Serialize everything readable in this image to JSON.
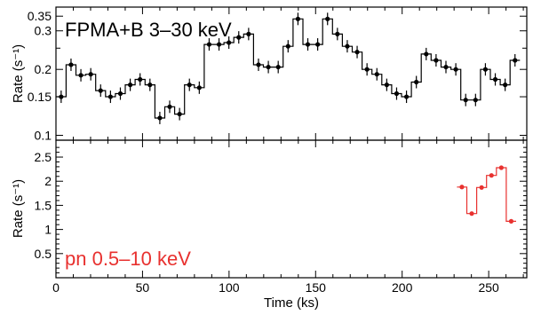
{
  "chart_data": [
    {
      "type": "line",
      "panel": "top",
      "label": "FPMA+B 3–30 keV",
      "label_color": "#000000",
      "color": "#000000",
      "ylabel": "Rate (s⁻¹)",
      "yscale": "log",
      "ylim": [
        0.095,
        0.385
      ],
      "xlim": [
        0,
        272
      ],
      "yticks": [
        0.1,
        0.15,
        0.2,
        0.3,
        0.35
      ],
      "ytick_labels": [
        "0.1",
        "0.15",
        "0.2",
        "0.3",
        "0.35"
      ],
      "series": [
        {
          "bin_width": 5.7,
          "x": [
            3,
            8.7,
            14.4,
            20.1,
            25.8,
            31.5,
            37.2,
            42.9,
            48.6,
            54.3,
            60,
            65.7,
            71.4,
            77.1,
            82.8,
            88.5,
            94.2,
            99.9,
            105.6,
            111.3,
            117,
            122.7,
            128.4,
            134.1,
            139.8,
            145.5,
            151.2,
            156.9,
            162.6,
            168.3,
            174,
            179.7,
            185.4,
            191.1,
            196.8,
            202.5,
            208.2,
            213.9,
            219.6,
            225.3,
            231,
            236.7,
            242.4,
            248.1,
            253.8,
            259.5,
            265.2
          ],
          "y": [
            0.15,
            0.21,
            0.188,
            0.19,
            0.16,
            0.15,
            0.155,
            0.17,
            0.18,
            0.17,
            0.12,
            0.135,
            0.125,
            0.17,
            0.165,
            0.26,
            0.26,
            0.265,
            0.28,
            0.29,
            0.21,
            0.205,
            0.205,
            0.255,
            0.34,
            0.26,
            0.26,
            0.34,
            0.29,
            0.255,
            0.24,
            0.2,
            0.19,
            0.17,
            0.155,
            0.15,
            0.175,
            0.235,
            0.22,
            0.205,
            0.2,
            0.145,
            0.145,
            0.2,
            0.18,
            0.17,
            0.22
          ]
        }
      ]
    },
    {
      "type": "line",
      "panel": "bottom",
      "label": "pn 0.5–10 keV",
      "label_color": "#e8312f",
      "color": "#e8312f",
      "ylabel": "Rate (s⁻¹)",
      "xlabel": "Time (ks)",
      "ylim": [
        0,
        2.85
      ],
      "xlim": [
        0,
        272
      ],
      "xticks": [
        0,
        50,
        100,
        150,
        200,
        250
      ],
      "xtick_labels": [
        "0",
        "50",
        "100",
        "150",
        "200",
        "250"
      ],
      "yticks": [
        0.5,
        1,
        1.5,
        2,
        2.5
      ],
      "ytick_labels": [
        "0.5",
        "1",
        "1.5",
        "2",
        "2.5"
      ],
      "series": [
        {
          "bin_width": 5.7,
          "x": [
            234.5,
            240.2,
            245.9,
            251.6,
            257.3,
            263
          ],
          "y": [
            1.88,
            1.33,
            1.87,
            2.12,
            2.28,
            1.17
          ]
        }
      ]
    }
  ]
}
